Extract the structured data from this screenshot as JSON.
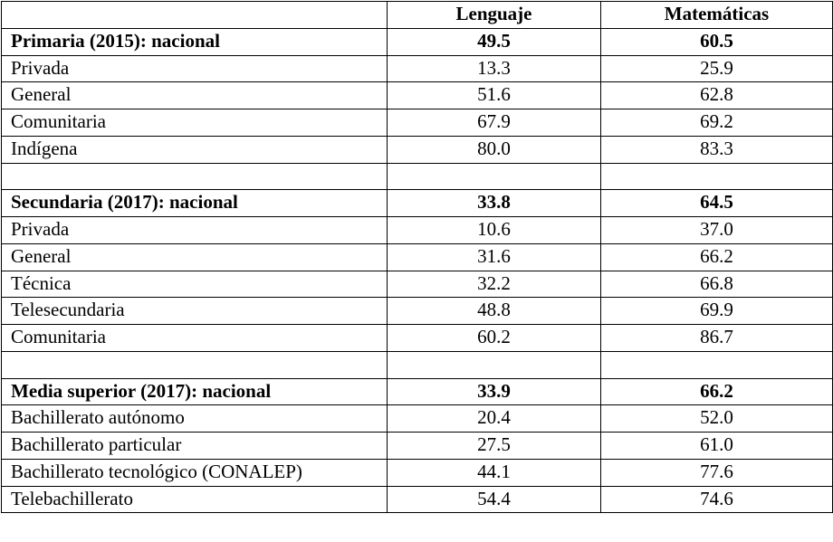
{
  "table": {
    "header": {
      "label": "",
      "col1": "Lenguaje",
      "col2": "Matemáticas"
    },
    "sections": [
      {
        "title": {
          "label": "Primaria (2015): nacional",
          "lenguaje": "49.5",
          "matematicas": "60.5"
        },
        "rows": [
          {
            "label": "Privada",
            "lenguaje": "13.3",
            "matematicas": "25.9"
          },
          {
            "label": "General",
            "lenguaje": "51.6",
            "matematicas": "62.8"
          },
          {
            "label": "Comunitaria",
            "lenguaje": "67.9",
            "matematicas": "69.2"
          },
          {
            "label": "Indígena",
            "lenguaje": "80.0",
            "matematicas": "83.3"
          }
        ]
      },
      {
        "title": {
          "label": "Secundaria (2017): nacional",
          "lenguaje": "33.8",
          "matematicas": "64.5"
        },
        "rows": [
          {
            "label": "Privada",
            "lenguaje": "10.6",
            "matematicas": "37.0"
          },
          {
            "label": "General",
            "lenguaje": "31.6",
            "matematicas": "66.2"
          },
          {
            "label": "Técnica",
            "lenguaje": "32.2",
            "matematicas": "66.8"
          },
          {
            "label": "Telesecundaria",
            "lenguaje": "48.8",
            "matematicas": "69.9"
          },
          {
            "label": "Comunitaria",
            "lenguaje": "60.2",
            "matematicas": "86.7"
          }
        ]
      },
      {
        "title": {
          "label": "Media superior (2017): nacional",
          "lenguaje": "33.9",
          "matematicas": "66.2"
        },
        "rows": [
          {
            "label": "Bachillerato autónomo",
            "lenguaje": "20.4",
            "matematicas": "52.0"
          },
          {
            "label": "Bachillerato particular",
            "lenguaje": "27.5",
            "matematicas": "61.0"
          },
          {
            "label": "Bachillerato tecnológico (CONALEP)",
            "lenguaje": "44.1",
            "matematicas": "77.6"
          },
          {
            "label": "Telebachillerato",
            "lenguaje": "54.4",
            "matematicas": "74.6"
          }
        ]
      }
    ]
  }
}
